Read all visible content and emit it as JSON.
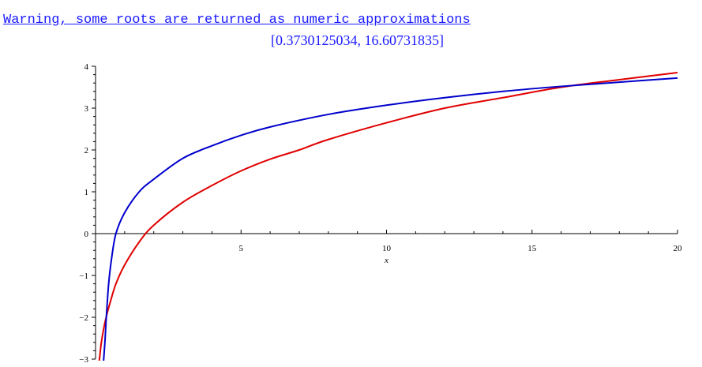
{
  "output": {
    "warning_text": "Warning, some roots are returned as numeric approximations",
    "result_text": "[0.3730125034, 16.60731835]"
  },
  "colors": {
    "text_blue": "#1a1aff",
    "curve_blue": "#0000cc",
    "curve_red": "#e00000",
    "axis": "#000000"
  },
  "chart_data": {
    "type": "line",
    "title": "",
    "xlabel": "x",
    "ylabel": "",
    "xlim": [
      0,
      20
    ],
    "ylim": [
      -3,
      4
    ],
    "x_ticks": [
      5,
      10,
      15,
      20
    ],
    "y_ticks": [
      -3,
      -2,
      -1,
      0,
      1,
      2,
      3,
      4
    ],
    "grid": false,
    "series": [
      {
        "color": "#e00000",
        "points": [
          [
            0.1,
            -3.2
          ],
          [
            0.15,
            -2.9
          ],
          [
            0.2,
            -2.6
          ],
          [
            0.3,
            -2.2
          ],
          [
            0.4,
            -1.9
          ],
          [
            0.5,
            -1.65
          ],
          [
            0.7,
            -1.2
          ],
          [
            1.0,
            -0.75
          ],
          [
            1.5,
            -0.2
          ],
          [
            2.0,
            0.2
          ],
          [
            3.0,
            0.75
          ],
          [
            4.0,
            1.15
          ],
          [
            5.0,
            1.5
          ],
          [
            6.0,
            1.78
          ],
          [
            7.0,
            2.0
          ],
          [
            8.0,
            2.25
          ],
          [
            10.0,
            2.65
          ],
          [
            12.0,
            3.0
          ],
          [
            14.0,
            3.25
          ],
          [
            16.0,
            3.5
          ],
          [
            18.0,
            3.68
          ],
          [
            20.0,
            3.85
          ]
        ]
      },
      {
        "color": "#0000cc",
        "points": [
          [
            0.25,
            -3.2
          ],
          [
            0.28,
            -3.0
          ],
          [
            0.33,
            -2.5
          ],
          [
            0.37,
            -2.0
          ],
          [
            0.45,
            -1.2
          ],
          [
            0.55,
            -0.6
          ],
          [
            0.7,
            0.0
          ],
          [
            1.0,
            0.5
          ],
          [
            1.5,
            1.0
          ],
          [
            2.0,
            1.3
          ],
          [
            3.0,
            1.8
          ],
          [
            4.0,
            2.1
          ],
          [
            5.0,
            2.35
          ],
          [
            6.0,
            2.55
          ],
          [
            8.0,
            2.85
          ],
          [
            10.0,
            3.07
          ],
          [
            12.0,
            3.25
          ],
          [
            14.0,
            3.4
          ],
          [
            16.0,
            3.52
          ],
          [
            18.0,
            3.62
          ],
          [
            20.0,
            3.72
          ]
        ]
      }
    ]
  }
}
